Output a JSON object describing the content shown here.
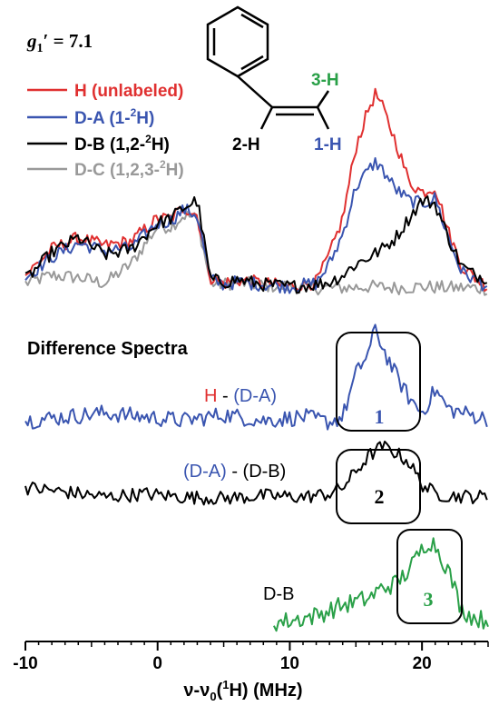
{
  "figure": {
    "g_label": "g",
    "g_sub": "1",
    "g_rest": "′ = 7.1",
    "legend": [
      {
        "main": "H (unlabeled)",
        "color": "#e03030"
      },
      {
        "main": "D-A (1-",
        "sup": "2",
        "tail": "H)",
        "color": "#3a55b0"
      },
      {
        "main": "D-B (1,2-",
        "sup": "2",
        "tail": "H)",
        "color": "#000000"
      },
      {
        "main": "D-C (1,2,3-",
        "sup": "2",
        "tail": "H)",
        "color": "#999999"
      }
    ],
    "molecule": {
      "label_3h": "3-H",
      "color_3h": "#2aa048",
      "label_2h": "2-H",
      "color_2h": "#000000",
      "label_1h": "1-H",
      "color_1h": "#3a55b0"
    },
    "difference_title": "Difference Spectra",
    "diff_labels": {
      "d1_a": "H",
      "d1_b": " - ",
      "d1_c": "(D-A)",
      "d2_a": "(D-A)",
      "d2_b": " - (D-B)",
      "d3": "D-B"
    },
    "boxes": [
      "1",
      "2",
      "3"
    ],
    "x_ticks": [
      "-10",
      "0",
      "10",
      "20"
    ],
    "xlabel": "ν-ν0(1H) (MHz)"
  },
  "chart_data": {
    "type": "line",
    "xlim": [
      -10,
      25
    ],
    "x_ticks": [
      -10,
      0,
      10,
      20
    ],
    "xlabel": "ν-ν0(1H) (MHz)",
    "title": "g1′ = 7.1",
    "panels": [
      {
        "name": "top",
        "series": [
          {
            "name": "H (unlabeled)",
            "color": "#e03030",
            "x": [
              -10,
              -8,
              -6,
              -4,
              -2,
              0,
              1,
              2,
              3,
              4,
              5,
              6,
              8,
              10,
              12,
              13,
              14,
              15,
              16,
              16.5,
              17,
              18,
              19,
              20,
              21,
              22,
              23,
              24,
              25
            ],
            "y": [
              0.12,
              0.35,
              0.45,
              0.38,
              0.42,
              0.62,
              0.62,
              0.72,
              0.65,
              0.1,
              0.05,
              0.08,
              0.05,
              0.02,
              0.06,
              0.3,
              0.62,
              1.25,
              1.6,
              1.72,
              1.6,
              1.3,
              0.95,
              0.85,
              0.9,
              0.5,
              0.2,
              0.1,
              0.02
            ]
          },
          {
            "name": "D-A (1-2H)",
            "color": "#3a55b0",
            "x": [
              -10,
              -8,
              -6,
              -4,
              -2,
              0,
              1,
              2,
              3,
              4,
              5,
              6,
              8,
              10,
              12,
              13,
              14,
              15,
              16,
              16.5,
              17,
              18,
              19,
              20,
              21,
              22,
              23,
              24,
              25
            ],
            "y": [
              0.1,
              0.28,
              0.4,
              0.34,
              0.36,
              0.58,
              0.6,
              0.7,
              0.65,
              0.08,
              0.04,
              0.06,
              0.04,
              0.02,
              0.05,
              0.22,
              0.48,
              0.9,
              1.05,
              1.12,
              1.05,
              0.88,
              0.78,
              0.75,
              0.8,
              0.45,
              0.15,
              0.08,
              0.02
            ]
          },
          {
            "name": "D-B (1,2-2H)",
            "color": "#000000",
            "x": [
              -10,
              -8,
              -6,
              -4,
              -2,
              0,
              1,
              2,
              3,
              4,
              5,
              6,
              8,
              10,
              12,
              13,
              14,
              15,
              16,
              17,
              18,
              19,
              20,
              21,
              22,
              23,
              24,
              25
            ],
            "y": [
              0.08,
              0.32,
              0.45,
              0.3,
              0.35,
              0.58,
              0.62,
              0.72,
              0.78,
              0.08,
              0.06,
              0.08,
              0.04,
              0.02,
              0.04,
              0.06,
              0.12,
              0.22,
              0.28,
              0.35,
              0.45,
              0.62,
              0.78,
              0.75,
              0.45,
              0.2,
              0.12,
              0.1
            ]
          },
          {
            "name": "D-C (1,2,3-2H)",
            "color": "#999999",
            "x": [
              -10,
              -8,
              -6,
              -4,
              -2,
              0,
              1,
              2,
              3,
              4,
              5,
              6,
              8,
              10,
              12,
              14,
              16,
              18,
              20,
              22,
              24,
              25
            ],
            "y": [
              0.05,
              0.12,
              0.1,
              0.05,
              0.22,
              0.55,
              0.55,
              0.65,
              0.62,
              0.05,
              0.04,
              0.06,
              0.03,
              0.02,
              0.01,
              0.01,
              0.02,
              0.01,
              0.02,
              0.01,
              0.01,
              0.0
            ]
          }
        ]
      },
      {
        "name": "difference",
        "series": [
          {
            "name": "H - (D-A)",
            "color": "#3a55b0",
            "x": [
              -10,
              -7,
              -4,
              -1,
              2,
              5,
              8,
              11,
              13,
              14,
              15,
              16,
              16.5,
              17,
              18,
              19,
              20,
              21,
              22,
              25
            ],
            "y": [
              0.0,
              0.05,
              0.1,
              0.05,
              0.0,
              0.08,
              0.0,
              0.05,
              -0.02,
              0.05,
              0.6,
              0.9,
              1.2,
              0.95,
              0.6,
              0.3,
              0.1,
              0.4,
              0.15,
              0.02
            ]
          },
          {
            "name": "(D-A) - (D-B)",
            "color": "#000000",
            "x": [
              -10,
              -7,
              -4,
              -1,
              2,
              5,
              8,
              11,
              13,
              14,
              15,
              16,
              17,
              18,
              19,
              20,
              21,
              22,
              25
            ],
            "y": [
              0.15,
              0.08,
              0.0,
              0.05,
              0.0,
              -0.02,
              0.02,
              0.0,
              0.05,
              0.15,
              0.4,
              0.65,
              0.8,
              0.7,
              0.55,
              0.2,
              0.05,
              0.02,
              0.0
            ]
          },
          {
            "name": "D-B",
            "color": "#2aa048",
            "x": [
              8.8,
              10,
              12,
              14,
              16,
              17,
              18,
              19,
              20,
              20.5,
              21,
              22,
              23,
              24,
              25
            ],
            "y": [
              0.0,
              0.02,
              0.08,
              0.2,
              0.28,
              0.4,
              0.45,
              0.6,
              0.85,
              0.95,
              0.9,
              0.6,
              0.15,
              0.05,
              0.02
            ]
          }
        ]
      }
    ]
  }
}
